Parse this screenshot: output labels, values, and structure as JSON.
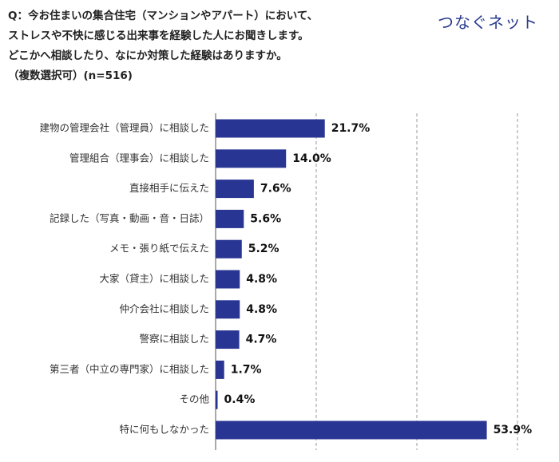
{
  "brand": {
    "logo_text": "つなぐネット",
    "logo_color": "#2a3b8f"
  },
  "question": {
    "lines": [
      "Q：今お住まいの集合住宅（マンションやアパート）において、",
      "ストレスや不快に感じる出来事を経験した人にお聞きします。",
      "どこかへ相談したり、なにか対策した経験はありますか。",
      "（複数選択可）(n=516)"
    ]
  },
  "chart_data": {
    "type": "bar",
    "orientation": "horizontal",
    "unit": "%",
    "bar_color": "#283593",
    "grid": "dashed vertical",
    "xlim": [
      0,
      60
    ],
    "categories": [
      "建物の管理会社（管理員）に相談した",
      "管理組合（理事会）に相談した",
      "直接相手に伝えた",
      "記録した（写真・動画・音・日誌）",
      "メモ・張り紙で伝えた",
      "大家（貸主）に相談した",
      "仲介会社に相談した",
      "警察に相談した",
      "第三者（中立の専門家）に相談した",
      "その他",
      "特に何もしなかった"
    ],
    "values": [
      21.7,
      14.0,
      7.6,
      5.6,
      5.2,
      4.8,
      4.8,
      4.7,
      1.7,
      0.4,
      53.9
    ],
    "value_labels": [
      "21.7%",
      "14.0%",
      "7.6%",
      "5.6%",
      "5.2%",
      "4.8%",
      "4.8%",
      "4.7%",
      "1.7%",
      "0.4%",
      "53.9%"
    ]
  }
}
